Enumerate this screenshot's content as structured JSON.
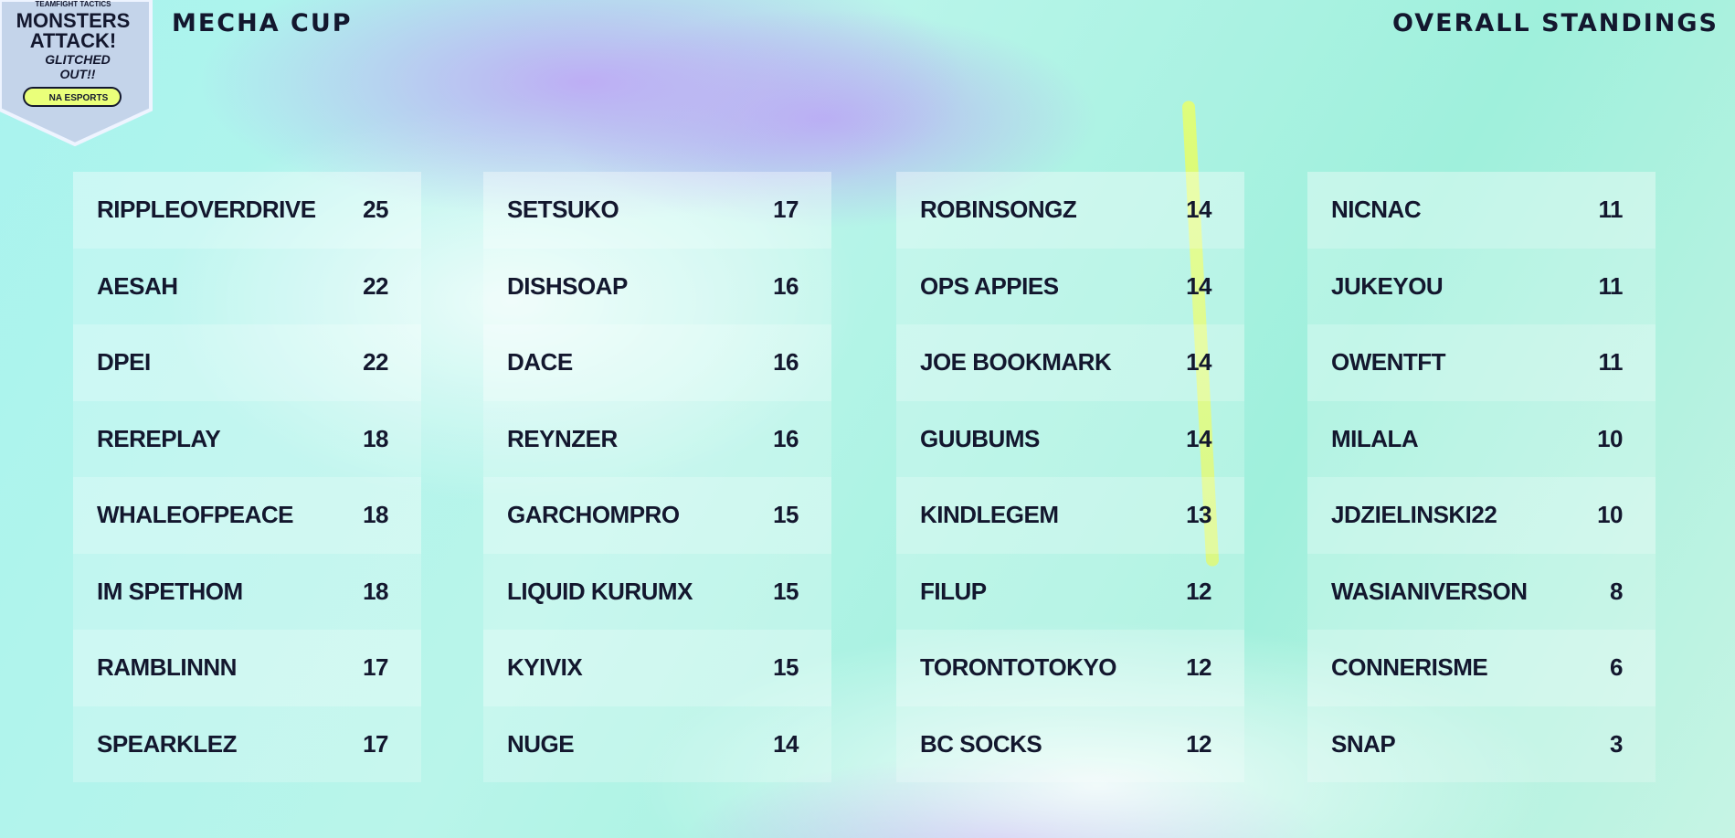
{
  "header": {
    "logo": {
      "top": "TEAMFIGHT TACTICS",
      "line1": "MONSTERS",
      "line2": "ATTACK!",
      "line3": "GLITCHED",
      "line4": "OUT!!",
      "badge": "NA ESPORTS"
    },
    "title": "MECHA CUP",
    "subtitle": "OVERALL STANDINGS"
  },
  "standings": {
    "columns": [
      {
        "rows": [
          {
            "name": "RIPPLEOVERDRIVE",
            "points": 25
          },
          {
            "name": "AESAH",
            "points": 22
          },
          {
            "name": "DPEI",
            "points": 22
          },
          {
            "name": "REREPLAY",
            "points": 18
          },
          {
            "name": "WHALEOFPEACE",
            "points": 18
          },
          {
            "name": "IM SPETHOM",
            "points": 18
          },
          {
            "name": "RAMBLINNN",
            "points": 17
          },
          {
            "name": "SPEARKLEZ",
            "points": 17
          }
        ]
      },
      {
        "rows": [
          {
            "name": "SETSUKO",
            "points": 17
          },
          {
            "name": "DISHSOAP",
            "points": 16
          },
          {
            "name": "DACE",
            "points": 16
          },
          {
            "name": "REYNZER",
            "points": 16
          },
          {
            "name": "GARCHOMPRO",
            "points": 15
          },
          {
            "name": "LIQUID KURUMX",
            "points": 15
          },
          {
            "name": "KYIVIX",
            "points": 15
          },
          {
            "name": "NUGE",
            "points": 14
          }
        ]
      },
      {
        "rows": [
          {
            "name": "ROBINSONGZ",
            "points": 14
          },
          {
            "name": "OPS APPIES",
            "points": 14
          },
          {
            "name": "JOE BOOKMARK",
            "points": 14
          },
          {
            "name": "GUUBUMS",
            "points": 14
          },
          {
            "name": "KINDLEGEM",
            "points": 13
          },
          {
            "name": "FILUP",
            "points": 12
          },
          {
            "name": "TORONTOTOKYO",
            "points": 12
          },
          {
            "name": "BC SOCKS",
            "points": 12
          }
        ]
      },
      {
        "rows": [
          {
            "name": "NICNAC",
            "points": 11
          },
          {
            "name": "JUKEYOU",
            "points": 11
          },
          {
            "name": "OWENTFT",
            "points": 11
          },
          {
            "name": "MILALA",
            "points": 10
          },
          {
            "name": "JDZIELINSKI22",
            "points": 10
          },
          {
            "name": "WASIANIVERSON",
            "points": 8
          },
          {
            "name": "CONNERISME",
            "points": 6
          },
          {
            "name": "SNAP",
            "points": 3
          }
        ]
      }
    ]
  }
}
